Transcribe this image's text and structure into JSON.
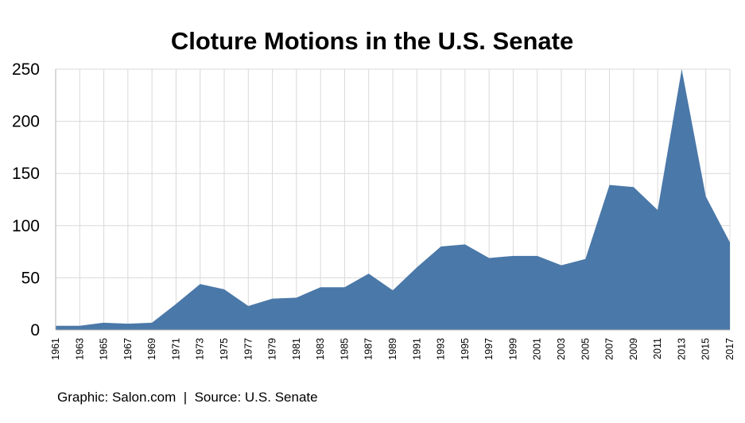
{
  "chart_data": {
    "type": "area",
    "title": "Cloture Motions in the U.S. Senate",
    "xlabel": "",
    "ylabel": "",
    "x": [
      "1961",
      "1963",
      "1965",
      "1967",
      "1969",
      "1971",
      "1973",
      "1975",
      "1977",
      "1979",
      "1981",
      "1983",
      "1985",
      "1987",
      "1989",
      "1991",
      "1993",
      "1995",
      "1997",
      "1999",
      "2001",
      "2003",
      "2005",
      "2007",
      "2009",
      "2011",
      "2013",
      "2015",
      "2017"
    ],
    "series": [
      {
        "values": [
          4,
          4,
          7,
          6,
          7,
          25,
          44,
          39,
          23,
          30,
          31,
          41,
          41,
          54,
          38,
          60,
          80,
          82,
          69,
          71,
          71,
          62,
          68,
          139,
          137,
          115,
          252,
          128,
          84
        ]
      }
    ],
    "ylim": [
      0,
      250
    ],
    "yticks": [
      "0",
      "50",
      "100",
      "150",
      "200",
      "250"
    ],
    "grid": true,
    "legend": "none",
    "colors": {
      "area": "#4a78a8",
      "grid": "#d9d9d9"
    }
  },
  "footer": {
    "credit": "Graphic: Salon.com  |  Source: U.S. Senate"
  }
}
